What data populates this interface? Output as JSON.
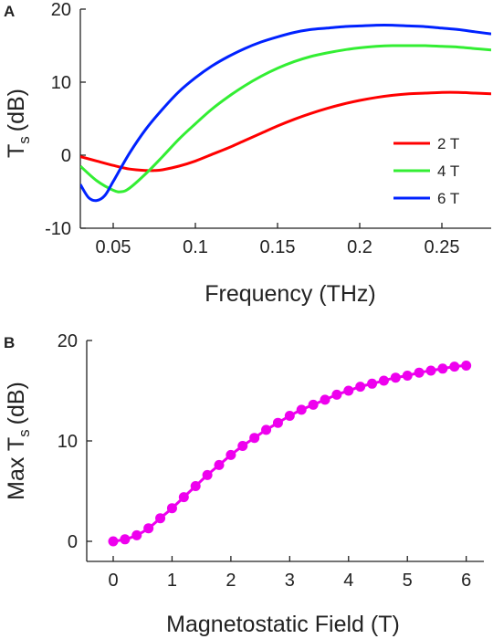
{
  "chart_data": [
    {
      "type": "line",
      "panel_label": "A",
      "xlabel": "Frequency (THz)",
      "ylabel_main": "T",
      "ylabel_sub": "s",
      "ylabel_unit": "(dB)",
      "xlim": [
        0.03,
        0.28
      ],
      "ylim": [
        -10,
        20
      ],
      "xticks": [
        0.05,
        0.1,
        0.15,
        0.2,
        0.25
      ],
      "xtick_labels": [
        "0.05",
        "0.1",
        "0.15",
        "0.2",
        "0.25"
      ],
      "yticks": [
        -10,
        0,
        10,
        20
      ],
      "ytick_labels": [
        "-10",
        "0",
        "10",
        "20"
      ],
      "legend_position": "right",
      "series": [
        {
          "name": "2 T",
          "color": "#ff0000",
          "x": [
            0.03,
            0.04,
            0.05,
            0.06,
            0.07,
            0.075,
            0.08,
            0.09,
            0.1,
            0.11,
            0.12,
            0.13,
            0.14,
            0.15,
            0.16,
            0.17,
            0.18,
            0.19,
            0.2,
            0.21,
            0.22,
            0.23,
            0.24,
            0.25,
            0.26,
            0.27,
            0.28
          ],
          "y": [
            -0.2,
            -0.8,
            -1.4,
            -1.9,
            -2.1,
            -2.1,
            -2.0,
            -1.5,
            -0.8,
            0.1,
            1.0,
            2.0,
            3.0,
            4.0,
            4.9,
            5.7,
            6.4,
            7.0,
            7.5,
            7.9,
            8.2,
            8.4,
            8.5,
            8.6,
            8.6,
            8.5,
            8.4
          ]
        },
        {
          "name": "4 T",
          "color": "#33ee33",
          "x": [
            0.03,
            0.04,
            0.05,
            0.055,
            0.06,
            0.07,
            0.08,
            0.09,
            0.1,
            0.11,
            0.12,
            0.13,
            0.14,
            0.15,
            0.16,
            0.17,
            0.18,
            0.19,
            0.2,
            0.21,
            0.22,
            0.23,
            0.24,
            0.25,
            0.26,
            0.27,
            0.28
          ],
          "y": [
            -1.5,
            -3.5,
            -4.8,
            -5.0,
            -4.5,
            -2.5,
            -0.2,
            2.2,
            4.3,
            6.3,
            8.0,
            9.5,
            10.8,
            11.9,
            12.8,
            13.5,
            14.0,
            14.4,
            14.7,
            14.9,
            15.0,
            15.0,
            15.0,
            14.9,
            14.8,
            14.6,
            14.4
          ]
        },
        {
          "name": "6 T",
          "color": "#0022ff",
          "x": [
            0.03,
            0.035,
            0.04,
            0.045,
            0.05,
            0.06,
            0.07,
            0.08,
            0.09,
            0.1,
            0.11,
            0.12,
            0.13,
            0.14,
            0.15,
            0.16,
            0.17,
            0.18,
            0.19,
            0.2,
            0.21,
            0.22,
            0.23,
            0.24,
            0.25,
            0.26,
            0.27,
            0.28
          ],
          "y": [
            -4.0,
            -5.8,
            -6.2,
            -5.5,
            -3.6,
            0.3,
            3.6,
            6.3,
            8.7,
            10.6,
            12.2,
            13.5,
            14.6,
            15.5,
            16.2,
            16.8,
            17.2,
            17.4,
            17.6,
            17.7,
            17.8,
            17.8,
            17.7,
            17.6,
            17.4,
            17.2,
            16.9,
            16.6
          ]
        }
      ]
    },
    {
      "type": "line",
      "panel_label": "B",
      "xlabel": "Magnetostatic Field (T)",
      "ylabel_main": "Max T",
      "ylabel_sub": "s",
      "ylabel_unit": "(dB)",
      "xlim": [
        -0.45,
        6.3
      ],
      "ylim": [
        -2,
        20
      ],
      "xticks": [
        0,
        1,
        2,
        3,
        4,
        5,
        6
      ],
      "xtick_labels": [
        "0",
        "1",
        "2",
        "3",
        "4",
        "5",
        "6"
      ],
      "yticks": [
        0,
        10,
        20
      ],
      "ytick_labels": [
        "0",
        "10",
        "20"
      ],
      "series": [
        {
          "color": "#ee00ee",
          "marker": "circle",
          "x": [
            0,
            0.2,
            0.4,
            0.6,
            0.8,
            1.0,
            1.2,
            1.4,
            1.6,
            1.8,
            2.0,
            2.2,
            2.4,
            2.6,
            2.8,
            3.0,
            3.2,
            3.4,
            3.6,
            3.8,
            4.0,
            4.2,
            4.4,
            4.6,
            4.8,
            5.0,
            5.2,
            5.4,
            5.6,
            5.8,
            6.0
          ],
          "y": [
            0.0,
            0.2,
            0.6,
            1.3,
            2.3,
            3.3,
            4.4,
            5.5,
            6.6,
            7.6,
            8.6,
            9.5,
            10.3,
            11.1,
            11.8,
            12.5,
            13.1,
            13.6,
            14.1,
            14.6,
            15.0,
            15.4,
            15.7,
            16.0,
            16.3,
            16.5,
            16.8,
            17.0,
            17.2,
            17.4,
            17.5
          ]
        }
      ]
    }
  ]
}
